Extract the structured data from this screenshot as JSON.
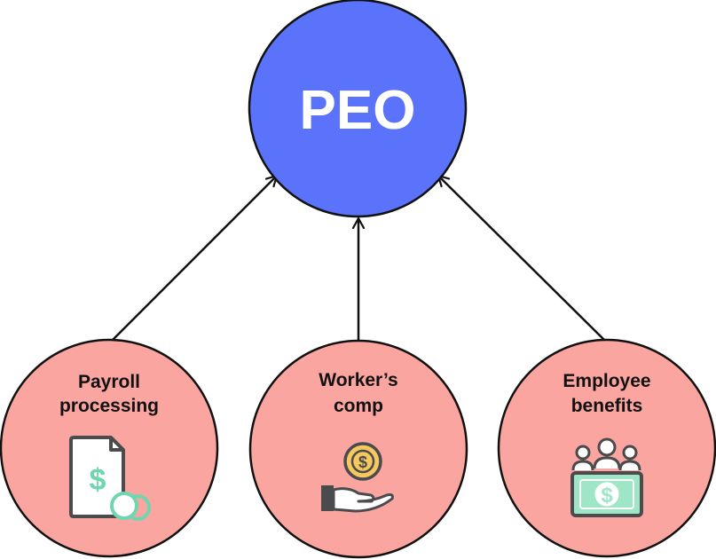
{
  "hub": {
    "label": "PEO",
    "fill": "#5b72fb"
  },
  "nodes": [
    {
      "id": "payroll",
      "lines": [
        "Payroll",
        "processing"
      ],
      "icon": "payroll-document-icon"
    },
    {
      "id": "workers-comp",
      "lines": [
        "Worker’s",
        "comp"
      ],
      "icon": "hand-coin-icon"
    },
    {
      "id": "benefits",
      "lines": [
        "Employee",
        "benefits"
      ],
      "icon": "team-money-icon"
    }
  ],
  "colors": {
    "node_fill": "#fba5a1",
    "stroke": "#111111",
    "icon_dark": "#4b4b4d",
    "icon_accent": "#6fd6b0",
    "icon_gold": "#f5c860",
    "icon_light": "#ffffff",
    "bill_fill": "#9fe6c6"
  }
}
